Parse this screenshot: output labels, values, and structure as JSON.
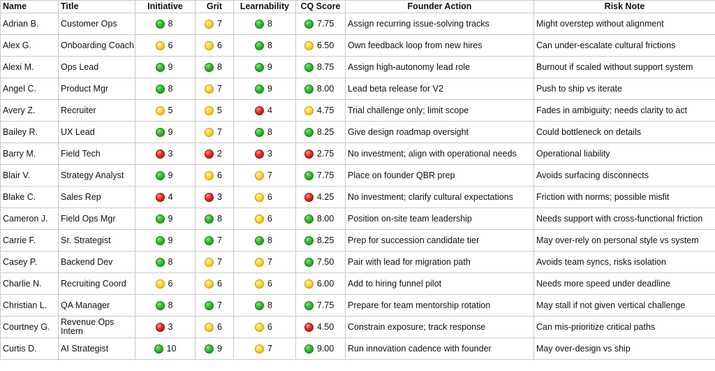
{
  "headers": [
    "Name",
    "Title",
    "Initiative",
    "Grit",
    "Learnability",
    "CQ Score",
    "Founder Action",
    "Risk Note"
  ],
  "rows": [
    {
      "name": "Adrian B.",
      "title": "Customer Ops",
      "initiative": {
        "v": "8",
        "c": "green"
      },
      "grit": {
        "v": "7",
        "c": "yellow"
      },
      "learnability": {
        "v": "8",
        "c": "green"
      },
      "cq": {
        "v": "7.75",
        "c": "green"
      },
      "action": "Assign recurring issue-solving tracks",
      "risk": "Might overstep without alignment"
    },
    {
      "name": "Alex G.",
      "title": "Onboarding Coach",
      "initiative": {
        "v": "6",
        "c": "yellow"
      },
      "grit": {
        "v": "6",
        "c": "yellow"
      },
      "learnability": {
        "v": "8",
        "c": "green"
      },
      "cq": {
        "v": "6.50",
        "c": "yellow"
      },
      "action": "Own feedback loop from new hires",
      "risk": "Can under-escalate cultural frictions"
    },
    {
      "name": "Alexi M.",
      "title": "Ops Lead",
      "initiative": {
        "v": "9",
        "c": "green"
      },
      "grit": {
        "v": "8",
        "c": "green"
      },
      "learnability": {
        "v": "9",
        "c": "green"
      },
      "cq": {
        "v": "8.75",
        "c": "green"
      },
      "action": "Assign high-autonomy lead role",
      "risk": "Burnout if scaled without support system"
    },
    {
      "name": "Angel C.",
      "title": "Product Mgr",
      "initiative": {
        "v": "8",
        "c": "green"
      },
      "grit": {
        "v": "7",
        "c": "yellow"
      },
      "learnability": {
        "v": "9",
        "c": "green"
      },
      "cq": {
        "v": "8.00",
        "c": "green"
      },
      "action": "Lead beta release for V2",
      "risk": "Push to ship vs iterate"
    },
    {
      "name": "Avery Z.",
      "title": "Recruiter",
      "initiative": {
        "v": "5",
        "c": "yellow"
      },
      "grit": {
        "v": "5",
        "c": "yellow"
      },
      "learnability": {
        "v": "4",
        "c": "red"
      },
      "cq": {
        "v": "4.75",
        "c": "yellow"
      },
      "action": "Trial challenge only; limit scope",
      "risk": "Fades in ambiguity; needs clarity to act"
    },
    {
      "name": "Bailey R.",
      "title": "UX Lead",
      "initiative": {
        "v": "9",
        "c": "green"
      },
      "grit": {
        "v": "7",
        "c": "yellow"
      },
      "learnability": {
        "v": "8",
        "c": "green"
      },
      "cq": {
        "v": "8.25",
        "c": "green"
      },
      "action": "Give design roadmap oversight",
      "risk": "Could bottleneck on details"
    },
    {
      "name": "Barry M.",
      "title": "Field Tech",
      "initiative": {
        "v": "3",
        "c": "red"
      },
      "grit": {
        "v": "2",
        "c": "red"
      },
      "learnability": {
        "v": "3",
        "c": "red"
      },
      "cq": {
        "v": "2.75",
        "c": "red"
      },
      "action": "No investment; align with operational needs",
      "risk": "Operational liability"
    },
    {
      "name": "Blair V.",
      "title": "Strategy Analyst",
      "initiative": {
        "v": "9",
        "c": "green"
      },
      "grit": {
        "v": "6",
        "c": "yellow"
      },
      "learnability": {
        "v": "7",
        "c": "yellow"
      },
      "cq": {
        "v": "7.75",
        "c": "green"
      },
      "action": "Place on founder QBR prep",
      "risk": "Avoids surfacing disconnects"
    },
    {
      "name": "Blake C.",
      "title": "Sales Rep",
      "initiative": {
        "v": "4",
        "c": "red"
      },
      "grit": {
        "v": "3",
        "c": "red"
      },
      "learnability": {
        "v": "6",
        "c": "yellow"
      },
      "cq": {
        "v": "4.25",
        "c": "red"
      },
      "action": "No investment; clarify cultural expectations",
      "risk": "Friction with norms; possible misfit"
    },
    {
      "name": "Cameron J.",
      "title": "Field Ops Mgr",
      "initiative": {
        "v": "9",
        "c": "green"
      },
      "grit": {
        "v": "8",
        "c": "green"
      },
      "learnability": {
        "v": "6",
        "c": "yellow"
      },
      "cq": {
        "v": "8.00",
        "c": "green"
      },
      "action": "Position on-site team leadership",
      "risk": "Needs support with cross-functional friction"
    },
    {
      "name": "Carrie F.",
      "title": "Sr. Strategist",
      "initiative": {
        "v": "9",
        "c": "green"
      },
      "grit": {
        "v": "7",
        "c": "green"
      },
      "learnability": {
        "v": "8",
        "c": "green"
      },
      "cq": {
        "v": "8.25",
        "c": "green"
      },
      "action": "Prep for succession candidate tier",
      "risk": "May over-rely on personal style vs system"
    },
    {
      "name": "Casey P.",
      "title": "Backend Dev",
      "initiative": {
        "v": "8",
        "c": "green"
      },
      "grit": {
        "v": "7",
        "c": "yellow"
      },
      "learnability": {
        "v": "7",
        "c": "yellow"
      },
      "cq": {
        "v": "7.50",
        "c": "green"
      },
      "action": "Pair with lead for migration path",
      "risk": "Avoids team syncs, risks isolation"
    },
    {
      "name": "Charlie N.",
      "title": "Recruiting Coord",
      "initiative": {
        "v": "6",
        "c": "yellow"
      },
      "grit": {
        "v": "6",
        "c": "yellow"
      },
      "learnability": {
        "v": "6",
        "c": "yellow"
      },
      "cq": {
        "v": "6.00",
        "c": "yellow"
      },
      "action": "Add to hiring funnel pilot",
      "risk": "Needs more speed under deadline"
    },
    {
      "name": "Christian L.",
      "title": "QA Manager",
      "initiative": {
        "v": "8",
        "c": "green"
      },
      "grit": {
        "v": "7",
        "c": "green"
      },
      "learnability": {
        "v": "8",
        "c": "green"
      },
      "cq": {
        "v": "7.75",
        "c": "green"
      },
      "action": "Prepare for team mentorship rotation",
      "risk": "May stall if not given vertical challenge"
    },
    {
      "name": "Courtney G.",
      "title": "Revenue Ops Intern",
      "initiative": {
        "v": "3",
        "c": "red"
      },
      "grit": {
        "v": "6",
        "c": "yellow"
      },
      "learnability": {
        "v": "6",
        "c": "yellow"
      },
      "cq": {
        "v": "4.50",
        "c": "red"
      },
      "action": "Constrain exposure; track response",
      "risk": "Can mis-prioritize critical paths"
    },
    {
      "name": "Curtis D.",
      "title": "AI Strategist",
      "initiative": {
        "v": "10",
        "c": "green"
      },
      "grit": {
        "v": "9",
        "c": "green"
      },
      "learnability": {
        "v": "7",
        "c": "yellow"
      },
      "cq": {
        "v": "9.00",
        "c": "green"
      },
      "action": "Run innovation cadence with founder",
      "risk": "May over-design vs ship"
    }
  ]
}
